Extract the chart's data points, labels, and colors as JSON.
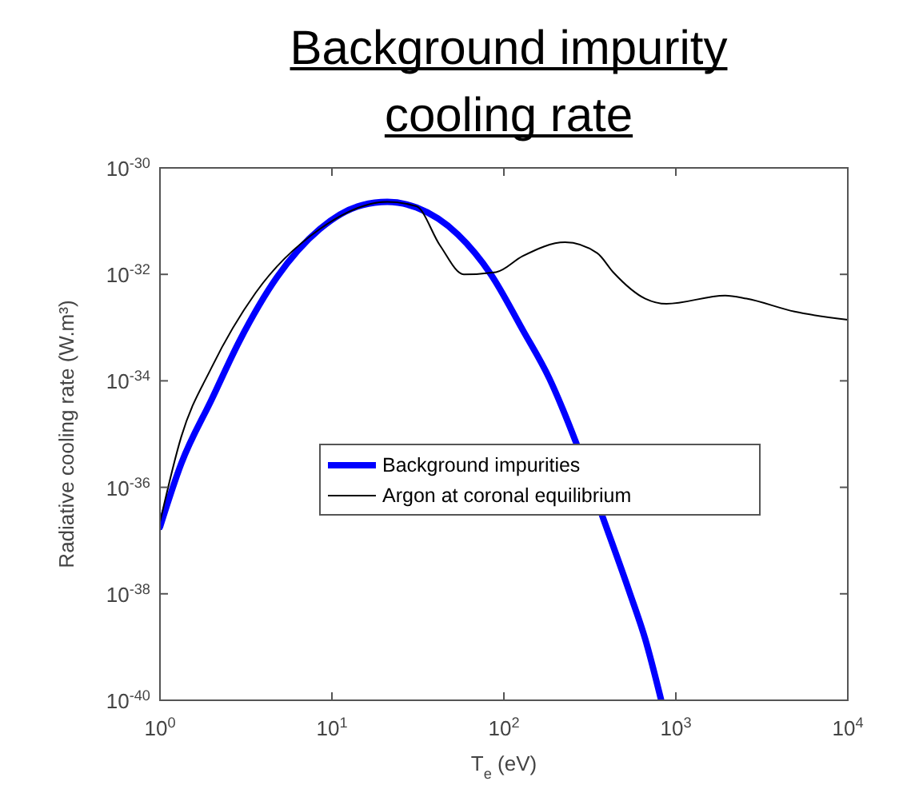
{
  "chart_data": {
    "type": "line",
    "title": "Background impurity cooling rate",
    "xlabel": "T$_{e}$ (eV)",
    "ylabel": "Radiative cooling rate (W.m³)",
    "log": "xy",
    "xlim": [
      1,
      10000
    ],
    "xticks": [
      {
        "value": 1,
        "label": "10$^{0}$"
      },
      {
        "value": 10,
        "label": "10$^{1}$"
      },
      {
        "value": 100,
        "label": "10$^{2}$"
      },
      {
        "value": 1000,
        "label": "10$^{3}$"
      },
      {
        "value": 10000,
        "label": "10$^{4}$"
      }
    ],
    "ylim": [
      1e-40,
      1e-30
    ],
    "yticks": [
      {
        "value": 1e-40,
        "label": "10$^{-40}$"
      },
      {
        "value": 1e-38,
        "label": "10$^{-38}$"
      },
      {
        "value": 1e-36,
        "label": "10$^{-36}$"
      },
      {
        "value": 1e-34,
        "label": "10$^{-34}$"
      },
      {
        "value": 1e-32,
        "label": "10$^{-32}$"
      },
      {
        "value": 1e-30,
        "label": "10$^{-30}$"
      }
    ],
    "grid": false,
    "legend": "right",
    "series": [
      {
        "name": "Background impurities",
        "color": "#0000ff",
        "x": [
          1,
          1.33,
          2,
          2.9,
          4.8,
          8.5,
          15,
          21,
          31,
          54,
          84,
          129,
          184,
          262,
          375,
          536,
          664,
          822
        ],
        "values": [
          1.8e-37,
          2.8e-36,
          4.5e-35,
          5.6e-34,
          8.9e-33,
          7.1e-32,
          2e-31,
          2.3e-31,
          1.8e-31,
          5.6e-32,
          1e-32,
          8.9e-34,
          1.1e-34,
          7.1e-36,
          2.8e-37,
          1.1e-38,
          1.4e-39,
          1e-40
        ]
      },
      {
        "name": "Argon at coronal equilibrium",
        "color": "#000000",
        "x": [
          1,
          1.33,
          2,
          3.6,
          8.5,
          21,
          31,
          42.5,
          58.5,
          90,
          128.5,
          227,
          349,
          432,
          664,
          883,
          1936,
          2576,
          4900,
          10000
        ],
        "values": [
          2.2e-37,
          8.9e-36,
          1.8e-34,
          4.5e-33,
          7.1e-32,
          2.3e-31,
          1.9e-31,
          3.5e-32,
          1e-32,
          1.1e-32,
          2.2e-32,
          4e-32,
          2.5e-32,
          1.1e-32,
          3.5e-33,
          2.8e-33,
          4e-33,
          3.5e-33,
          2e-33,
          1.4e-33
        ]
      }
    ]
  }
}
